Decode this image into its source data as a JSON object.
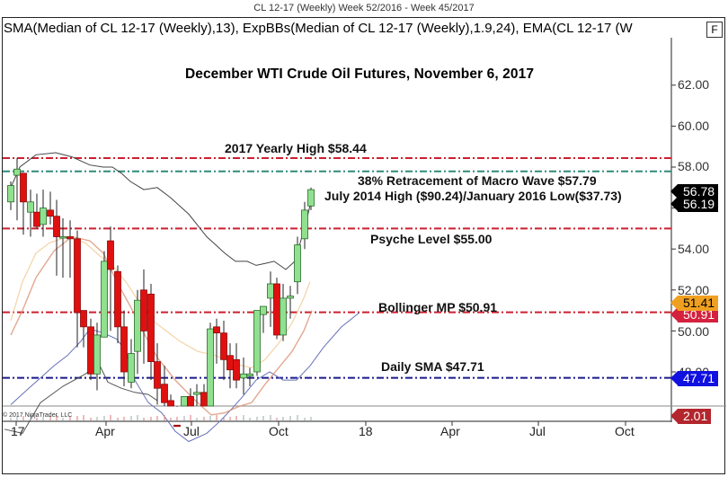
{
  "window": {
    "title": "CL 12-17 (Weekly)  Week 52/2016 - Week 45/2017",
    "indicator_legend": "SMA(Median of CL 12-17 (Weekly),13), ExpBBs(Median of CL 12-17 (Weekly),1.9,24), EMA(CL 12-17 (W",
    "f_button": "F",
    "copyright": "© 2017 NinjaTrader, LLC"
  },
  "chart_data": {
    "type": "candlestick",
    "title": "December WTI Crude Oil Futures, November 6, 2017",
    "instrument": "CL 12-17 (Weekly)",
    "date_range": "Week 52/2016 - Week 45/2017",
    "xlabel": "",
    "ylabel": "Price",
    "ylim": [
      46.3,
      64.2
    ],
    "y_ticks": [
      "62.00",
      "60.00",
      "58.00",
      "54.00",
      "52.00",
      "50.00",
      "48.00"
    ],
    "x_ticks": [
      "17",
      "Apr",
      "Jul",
      "Oct",
      "18",
      "Apr",
      "Jul",
      "Oct"
    ],
    "grid": false,
    "horizontal_levels": [
      {
        "label": "2017 Yearly High $58.44",
        "value": 58.44,
        "color": "#cc1f2f",
        "style": "dash-dot"
      },
      {
        "label": "38% Retracement of Macro Wave $57.79",
        "value": 57.79,
        "color": "#2e8b7a",
        "style": "dash-dot"
      },
      {
        "label": "July 2014 High ($90.24)/January 2016 Low($37.73)",
        "value": null,
        "color": "#111111",
        "style": "note"
      },
      {
        "label": "Psyche Level $55.00",
        "value": 55.0,
        "color": "#cc1f2f",
        "style": "dash-dot"
      },
      {
        "label": "Bollinger MP $50.91",
        "value": 50.91,
        "color": "#cc1f2f",
        "style": "dash-dot"
      },
      {
        "label": "Daily SMA $47.71",
        "value": 47.71,
        "color": "#1a1a8c",
        "style": "dash-dot"
      }
    ],
    "price_tags": [
      {
        "value": "56.78",
        "bg": "#000000",
        "fg": "#ffffff"
      },
      {
        "value": "56.19",
        "bg": "#000000",
        "fg": "#ffffff"
      },
      {
        "value": "51.41",
        "bg": "#f0a020",
        "fg": "#000000"
      },
      {
        "value": "50.91",
        "bg": "#d4213d",
        "fg": "#ffffff"
      },
      {
        "value": "47.71",
        "bg": "#1010e0",
        "fg": "#ffffff"
      },
      {
        "value": "2.01",
        "bg": "#b3262d",
        "fg": "#ffffff"
      }
    ],
    "candles": [
      {
        "x": 12,
        "o": 56.3,
        "h": 57.3,
        "l": 55.9,
        "c": 57.1
      },
      {
        "x": 19,
        "o": 57.6,
        "h": 58.44,
        "l": 55.4,
        "c": 57.9
      },
      {
        "x": 26,
        "o": 57.7,
        "h": 57.7,
        "l": 54.7,
        "c": 56.3
      },
      {
        "x": 34,
        "o": 55.8,
        "h": 56.9,
        "l": 54.6,
        "c": 56.3
      },
      {
        "x": 41,
        "o": 55.8,
        "h": 56.7,
        "l": 55.0,
        "c": 55.1
      },
      {
        "x": 48,
        "o": 55.2,
        "h": 56.9,
        "l": 54.6,
        "c": 56.0
      },
      {
        "x": 56,
        "o": 55.9,
        "h": 56.8,
        "l": 55.2,
        "c": 55.6
      },
      {
        "x": 63,
        "o": 55.6,
        "h": 56.4,
        "l": 52.7,
        "c": 54.6
      },
      {
        "x": 70,
        "o": 54.6,
        "h": 55.5,
        "l": 52.6,
        "c": 54.6
      },
      {
        "x": 78,
        "o": 54.6,
        "h": 55.4,
        "l": 52.6,
        "c": 54.5
      },
      {
        "x": 86,
        "o": 54.5,
        "h": 54.9,
        "l": 49.2,
        "c": 50.9
      },
      {
        "x": 93,
        "o": 51.0,
        "h": 51.0,
        "l": 49.2,
        "c": 50.2
      },
      {
        "x": 101,
        "o": 50.2,
        "h": 50.6,
        "l": 47.6,
        "c": 47.9
      },
      {
        "x": 108,
        "o": 47.9,
        "h": 50.4,
        "l": 47.1,
        "c": 49.8
      },
      {
        "x": 116,
        "o": 49.7,
        "h": 53.9,
        "l": 49.7,
        "c": 53.4
      },
      {
        "x": 123,
        "o": 54.4,
        "h": 55.1,
        "l": 50.0,
        "c": 53.0
      },
      {
        "x": 131,
        "o": 52.9,
        "h": 53.2,
        "l": 49.4,
        "c": 50.2
      },
      {
        "x": 138,
        "o": 50.2,
        "h": 51.0,
        "l": 47.3,
        "c": 48.0
      },
      {
        "x": 146,
        "o": 47.5,
        "h": 49.6,
        "l": 47.2,
        "c": 48.9
      },
      {
        "x": 153,
        "o": 49.0,
        "h": 52.0,
        "l": 47.9,
        "c": 51.5
      },
      {
        "x": 160,
        "o": 52.0,
        "h": 53.0,
        "l": 48.4,
        "c": 50.0
      },
      {
        "x": 168,
        "o": 51.8,
        "h": 52.3,
        "l": 47.6,
        "c": 48.5
      },
      {
        "x": 175,
        "o": 48.5,
        "h": 49.4,
        "l": 46.4,
        "c": 47.2
      },
      {
        "x": 183,
        "o": 47.4,
        "h": 48.3,
        "l": 46.3,
        "c": 46.5
      },
      {
        "x": 190,
        "o": 46.6,
        "h": 46.9,
        "l": 45.3,
        "c": 45.6
      },
      {
        "x": 197,
        "o": 45.4,
        "h": 46.3,
        "l": 44.4,
        "c": 45.0
      },
      {
        "x": 205,
        "o": 46.1,
        "h": 46.5,
        "l": 43.7,
        "c": 46.8
      },
      {
        "x": 212,
        "o": 46.8,
        "h": 47.2,
        "l": 45.6,
        "c": 46.2
      },
      {
        "x": 219,
        "o": 46.9,
        "h": 47.4,
        "l": 45.9,
        "c": 47.0
      },
      {
        "x": 227,
        "o": 47.0,
        "h": 47.4,
        "l": 45.6,
        "c": 46.2
      },
      {
        "x": 234,
        "o": 46.1,
        "h": 50.4,
        "l": 45.5,
        "c": 50.1
      },
      {
        "x": 241,
        "o": 50.2,
        "h": 50.6,
        "l": 48.4,
        "c": 49.9
      },
      {
        "x": 249,
        "o": 49.9,
        "h": 50.5,
        "l": 47.6,
        "c": 48.6
      },
      {
        "x": 256,
        "o": 48.8,
        "h": 49.4,
        "l": 47.2,
        "c": 48.1
      },
      {
        "x": 263,
        "o": 48.6,
        "h": 49.4,
        "l": 47.2,
        "c": 47.6
      },
      {
        "x": 271,
        "o": 47.7,
        "h": 48.7,
        "l": 46.9,
        "c": 47.9
      },
      {
        "x": 278,
        "o": 47.8,
        "h": 48.2,
        "l": 47.3,
        "c": 47.9
      },
      {
        "x": 286,
        "o": 48.0,
        "h": 51.0,
        "l": 47.8,
        "c": 51.0
      },
      {
        "x": 293,
        "o": 50.8,
        "h": 51.2,
        "l": 49.9,
        "c": 51.2
      },
      {
        "x": 301,
        "o": 51.6,
        "h": 52.9,
        "l": 50.2,
        "c": 52.3
      },
      {
        "x": 308,
        "o": 52.3,
        "h": 52.6,
        "l": 49.6,
        "c": 49.8
      },
      {
        "x": 315,
        "o": 49.8,
        "h": 52.3,
        "l": 49.5,
        "c": 51.6
      },
      {
        "x": 323,
        "o": 51.6,
        "h": 52.2,
        "l": 50.6,
        "c": 51.7
      },
      {
        "x": 331,
        "o": 52.4,
        "h": 54.6,
        "l": 51.8,
        "c": 54.2
      },
      {
        "x": 339,
        "o": 54.5,
        "h": 56.3,
        "l": 54.0,
        "c": 55.9
      },
      {
        "x": 346,
        "o": 56.1,
        "h": 57.0,
        "l": 55.9,
        "c": 56.9
      }
    ]
  },
  "annotations": {
    "title": "December WTI Crude Oil Futures, November 6, 2017",
    "yearly_high": "2017 Yearly High $58.44",
    "retracement": "38% Retracement of Macro Wave $57.79",
    "macro_wave_note": "July 2014 High ($90.24)/January 2016 Low($37.73)",
    "psyche_level": "Psyche Level $55.00",
    "bollinger_mp": "Bollinger MP $50.91",
    "daily_sma": "Daily SMA $47.71"
  },
  "axis": {
    "y_labels": [
      "62.00",
      "60.00",
      "58.00",
      "54.00",
      "52.00",
      "50.00",
      "48.00"
    ],
    "x_labels": [
      "17",
      "Apr",
      "Jul",
      "Oct",
      "18",
      "Apr",
      "Jul",
      "Oct"
    ]
  },
  "tags": [
    "56.78",
    "56.19",
    "51.41",
    "50.91",
    "47.71",
    "2.01"
  ]
}
